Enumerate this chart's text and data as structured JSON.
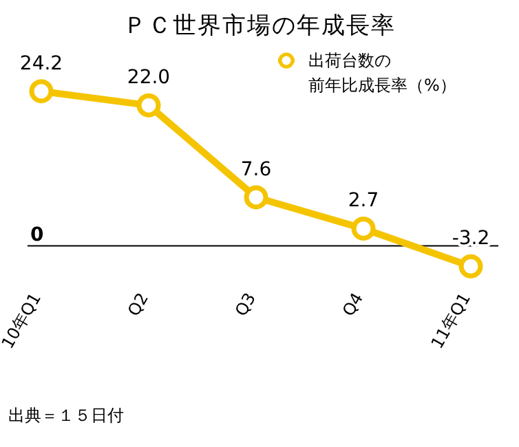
{
  "chart_data": {
    "type": "line",
    "title": "ＰＣ世界市場の年成長率",
    "categories": [
      "10年Q1",
      "Q2",
      "Q3",
      "Q4",
      "11年Q1"
    ],
    "series": [
      {
        "name": "出荷台数の前年比成長率（%）",
        "color": "#f5c400",
        "values": [
          24.2,
          22.0,
          7.6,
          2.7,
          -3.2
        ],
        "value_labels": [
          "24.2",
          "22.0",
          "7.6",
          "2.7",
          "-3.2"
        ]
      }
    ],
    "marker": "circle",
    "line_style": "solid",
    "legend": "top right",
    "grid": false,
    "ref_lines": [
      {
        "axis": "y",
        "value": 0,
        "label": "0",
        "color": "#000000"
      }
    ],
    "annotations": [
      "出典＝１５日付"
    ]
  }
}
